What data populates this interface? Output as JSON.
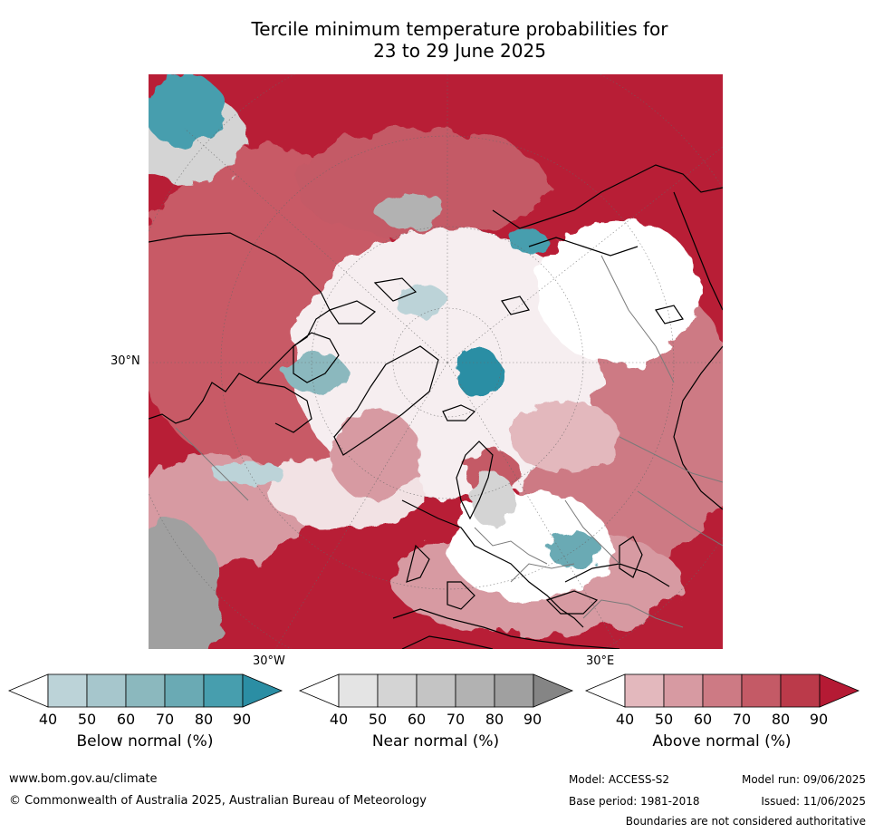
{
  "title": {
    "line1": "Tercile minimum temperature probabilities for",
    "line2": "23 to 29 June 2025"
  },
  "map": {
    "lat_label": "30°N",
    "lon_labels": [
      "30°W",
      "30°E"
    ]
  },
  "legends": [
    {
      "title": "Below normal (%)",
      "ticks": [
        "40",
        "50",
        "60",
        "70",
        "80",
        "90"
      ],
      "colors": [
        "#ffffff",
        "#bcd3d8",
        "#a6c6cc",
        "#8bb8be",
        "#6aaab4",
        "#479eae",
        "#2b8ea4"
      ]
    },
    {
      "title": "Near normal (%)",
      "ticks": [
        "40",
        "50",
        "60",
        "70",
        "80",
        "90"
      ],
      "colors": [
        "#ffffff",
        "#e4e4e4",
        "#d4d4d4",
        "#c4c4c4",
        "#b2b2b2",
        "#a0a0a0",
        "#858585"
      ]
    },
    {
      "title": "Above normal (%)",
      "ticks": [
        "40",
        "50",
        "60",
        "70",
        "80",
        "90"
      ],
      "colors": [
        "#ffffff",
        "#e3b8bd",
        "#d79aa2",
        "#cd7a84",
        "#c45a66",
        "#bb3a4a",
        "#b51a34"
      ]
    }
  ],
  "footer": {
    "website": "www.bom.gov.au/climate",
    "copyright": "© Commonwealth of Australia 2025, Australian Bureau of Meteorology",
    "model": "Model: ACCESS-S2",
    "base_period": "Base period: 1981-2018",
    "model_run": "Model run: 09/06/2025",
    "issued": "Issued: 11/06/2025",
    "disclaimer": "Boundaries are not considered authoritative"
  }
}
